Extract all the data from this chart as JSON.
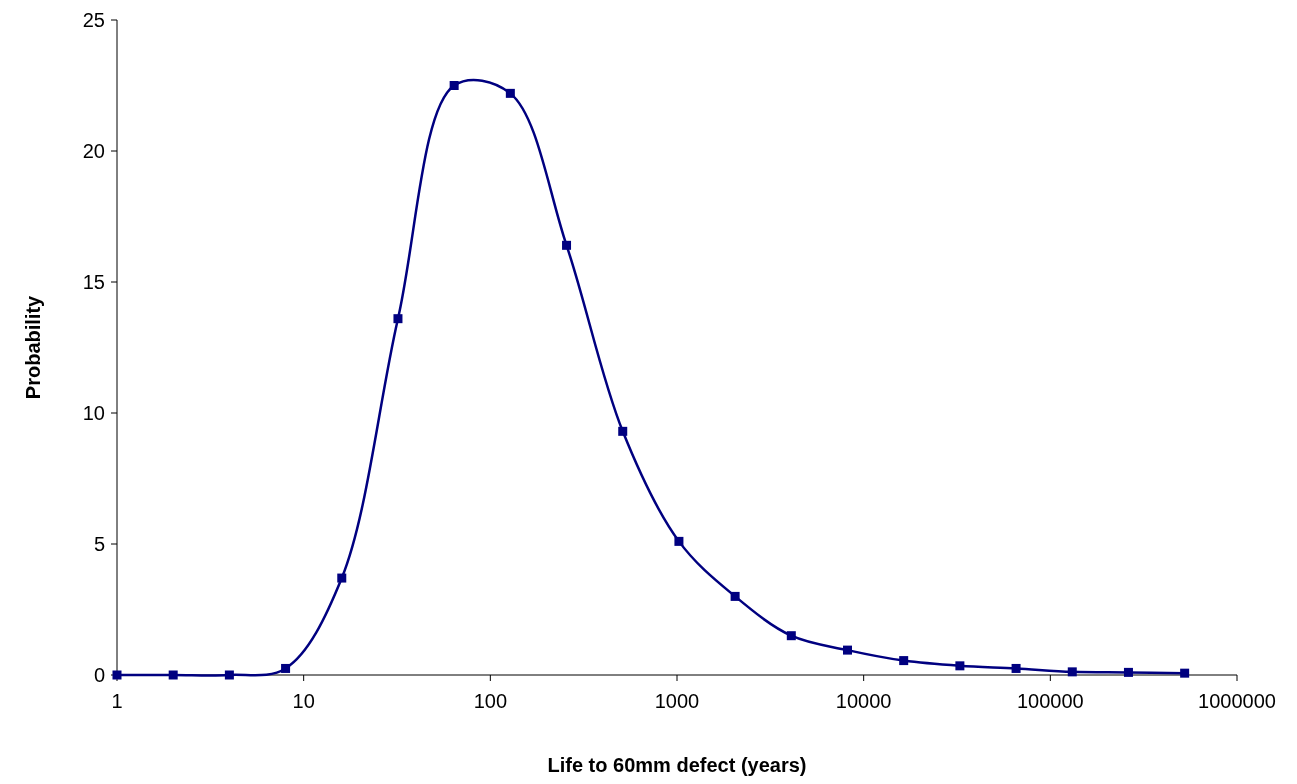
{
  "chart_data": {
    "type": "line",
    "xlabel": "Life to 60mm defect (years)",
    "ylabel": "Probability",
    "x": [
      1,
      2,
      4,
      8,
      16,
      32,
      64,
      128,
      256,
      512,
      1024,
      2048,
      4096,
      8192,
      16384,
      32768,
      65536,
      131072,
      262144,
      524288
    ],
    "series": [
      {
        "color": "#000080",
        "values": [
          0,
          0,
          0,
          0.25,
          3.7,
          13.6,
          22.5,
          22.2,
          16.4,
          9.3,
          5.1,
          3.0,
          1.5,
          0.95,
          0.55,
          0.35,
          0.25,
          0.12,
          0.1,
          0.07
        ]
      }
    ],
    "xlim": [
      1,
      1000000
    ],
    "xticks": [
      1,
      10,
      100,
      1000,
      10000,
      100000,
      1000000
    ],
    "ylim": [
      0,
      25
    ],
    "yticks": [
      0,
      5,
      10,
      15,
      20,
      25
    ],
    "log": "x",
    "marker": "square",
    "line_style": "solid",
    "grid": false
  }
}
